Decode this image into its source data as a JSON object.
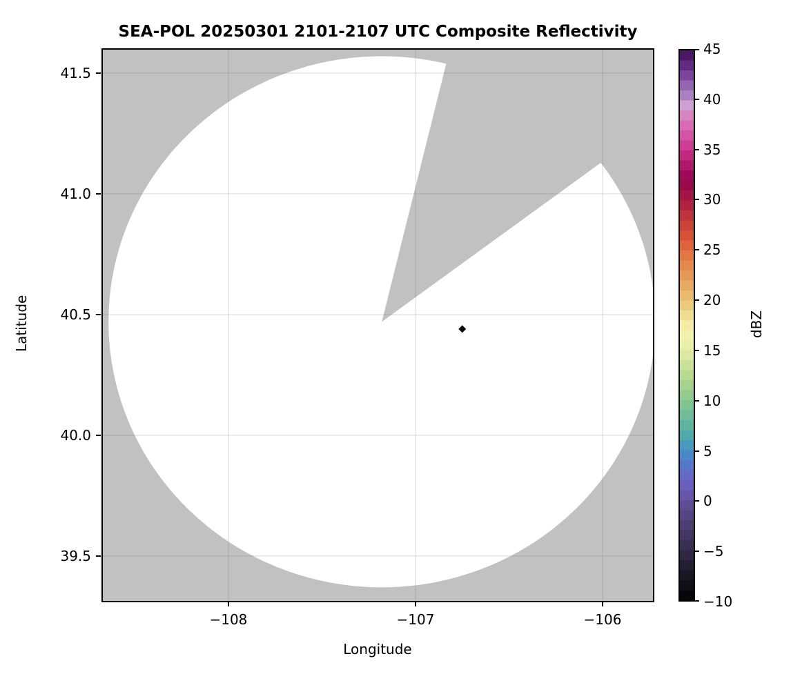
{
  "chart_data": {
    "type": "heatmap",
    "title": "SEA-POL 20250301 2101-2107 UTC Composite Reflectivity",
    "xlabel": "Longitude",
    "ylabel": "Latitude",
    "xlim": [
      -108.675,
      -105.727
    ],
    "ylim": [
      39.311,
      41.6
    ],
    "x_ticks": [
      -108,
      -107,
      -106
    ],
    "x_tick_labels": [
      "−108",
      "−107",
      "−106"
    ],
    "y_ticks": [
      41.5,
      41.0,
      40.5,
      40.0,
      39.5
    ],
    "y_tick_labels": [
      "41.5",
      "41.0",
      "40.5",
      "40.0",
      "39.5"
    ],
    "grid": true,
    "gridline_color": "rgba(100,100,100,0.18)",
    "no_data_color": "#c1c1c1",
    "scan_area_color": "#ffffff",
    "radar": {
      "center_lon": -107.18,
      "center_lat": 40.47,
      "radius_lon_deg": 1.461,
      "radius_lat_deg": 1.1,
      "missing_sector_azimuth_deg": [
        14,
        54
      ]
    },
    "echoes": [
      {
        "lon": -106.75,
        "lat": 40.44,
        "dbz": -10,
        "color": "#0b0b10",
        "marker": "diamond"
      }
    ],
    "colorbar": {
      "label": "dBZ",
      "min": -10,
      "max": 45,
      "step_dbz": 1,
      "ticks": [
        45,
        40,
        35,
        30,
        25,
        20,
        15,
        10,
        5,
        0,
        -5,
        -10
      ],
      "tick_labels": [
        "45",
        "40",
        "35",
        "30",
        "25",
        "20",
        "15",
        "10",
        "5",
        "0",
        "−5",
        "−10"
      ],
      "colormap_stops": [
        [
          -10,
          "#000000"
        ],
        [
          -9,
          "#0e0b14"
        ],
        [
          -7,
          "#1f1929"
        ],
        [
          -5,
          "#342b4b"
        ],
        [
          -3,
          "#483a6b"
        ],
        [
          -1,
          "#5b478b"
        ],
        [
          0,
          "#64519f"
        ],
        [
          1,
          "#6d58b4"
        ],
        [
          2,
          "#6a63c3"
        ],
        [
          3,
          "#5d70c9"
        ],
        [
          4,
          "#4e80ca"
        ],
        [
          5,
          "#4591c4"
        ],
        [
          6,
          "#4aa3b3"
        ],
        [
          7,
          "#56b0a3"
        ],
        [
          8,
          "#66b89b"
        ],
        [
          9,
          "#77c094"
        ],
        [
          10,
          "#89c790"
        ],
        [
          11,
          "#9cce8d"
        ],
        [
          12,
          "#afd68c"
        ],
        [
          13,
          "#c1de93"
        ],
        [
          14,
          "#d3e59c"
        ],
        [
          15,
          "#e3eca5"
        ],
        [
          16,
          "#eef1ab"
        ],
        [
          17,
          "#f5f3b1"
        ],
        [
          18,
          "#f1e59a"
        ],
        [
          19,
          "#eed487"
        ],
        [
          20,
          "#ebc275"
        ],
        [
          21,
          "#e9b167"
        ],
        [
          22,
          "#e7a15c"
        ],
        [
          23,
          "#e59052"
        ],
        [
          24,
          "#e37f49"
        ],
        [
          25,
          "#e06d40"
        ],
        [
          26,
          "#db5b38"
        ],
        [
          27,
          "#d14935"
        ],
        [
          28,
          "#c43a3a"
        ],
        [
          29,
          "#b62b3e"
        ],
        [
          30,
          "#a81c42"
        ],
        [
          31,
          "#9b0e46"
        ],
        [
          32,
          "#930650"
        ],
        [
          33,
          "#a30f62"
        ],
        [
          34,
          "#b81f76"
        ],
        [
          35,
          "#c93289"
        ],
        [
          36,
          "#d1499b"
        ],
        [
          37,
          "#d660ac"
        ],
        [
          38,
          "#da78bc"
        ],
        [
          39,
          "#d490ca"
        ],
        [
          39.6,
          "#cda4d4"
        ],
        [
          40,
          "#b78fc8"
        ],
        [
          41,
          "#9b73ba"
        ],
        [
          42,
          "#8c56a7"
        ],
        [
          43,
          "#703292"
        ],
        [
          44,
          "#5a2074"
        ],
        [
          45,
          "#3d0e52"
        ]
      ]
    }
  }
}
